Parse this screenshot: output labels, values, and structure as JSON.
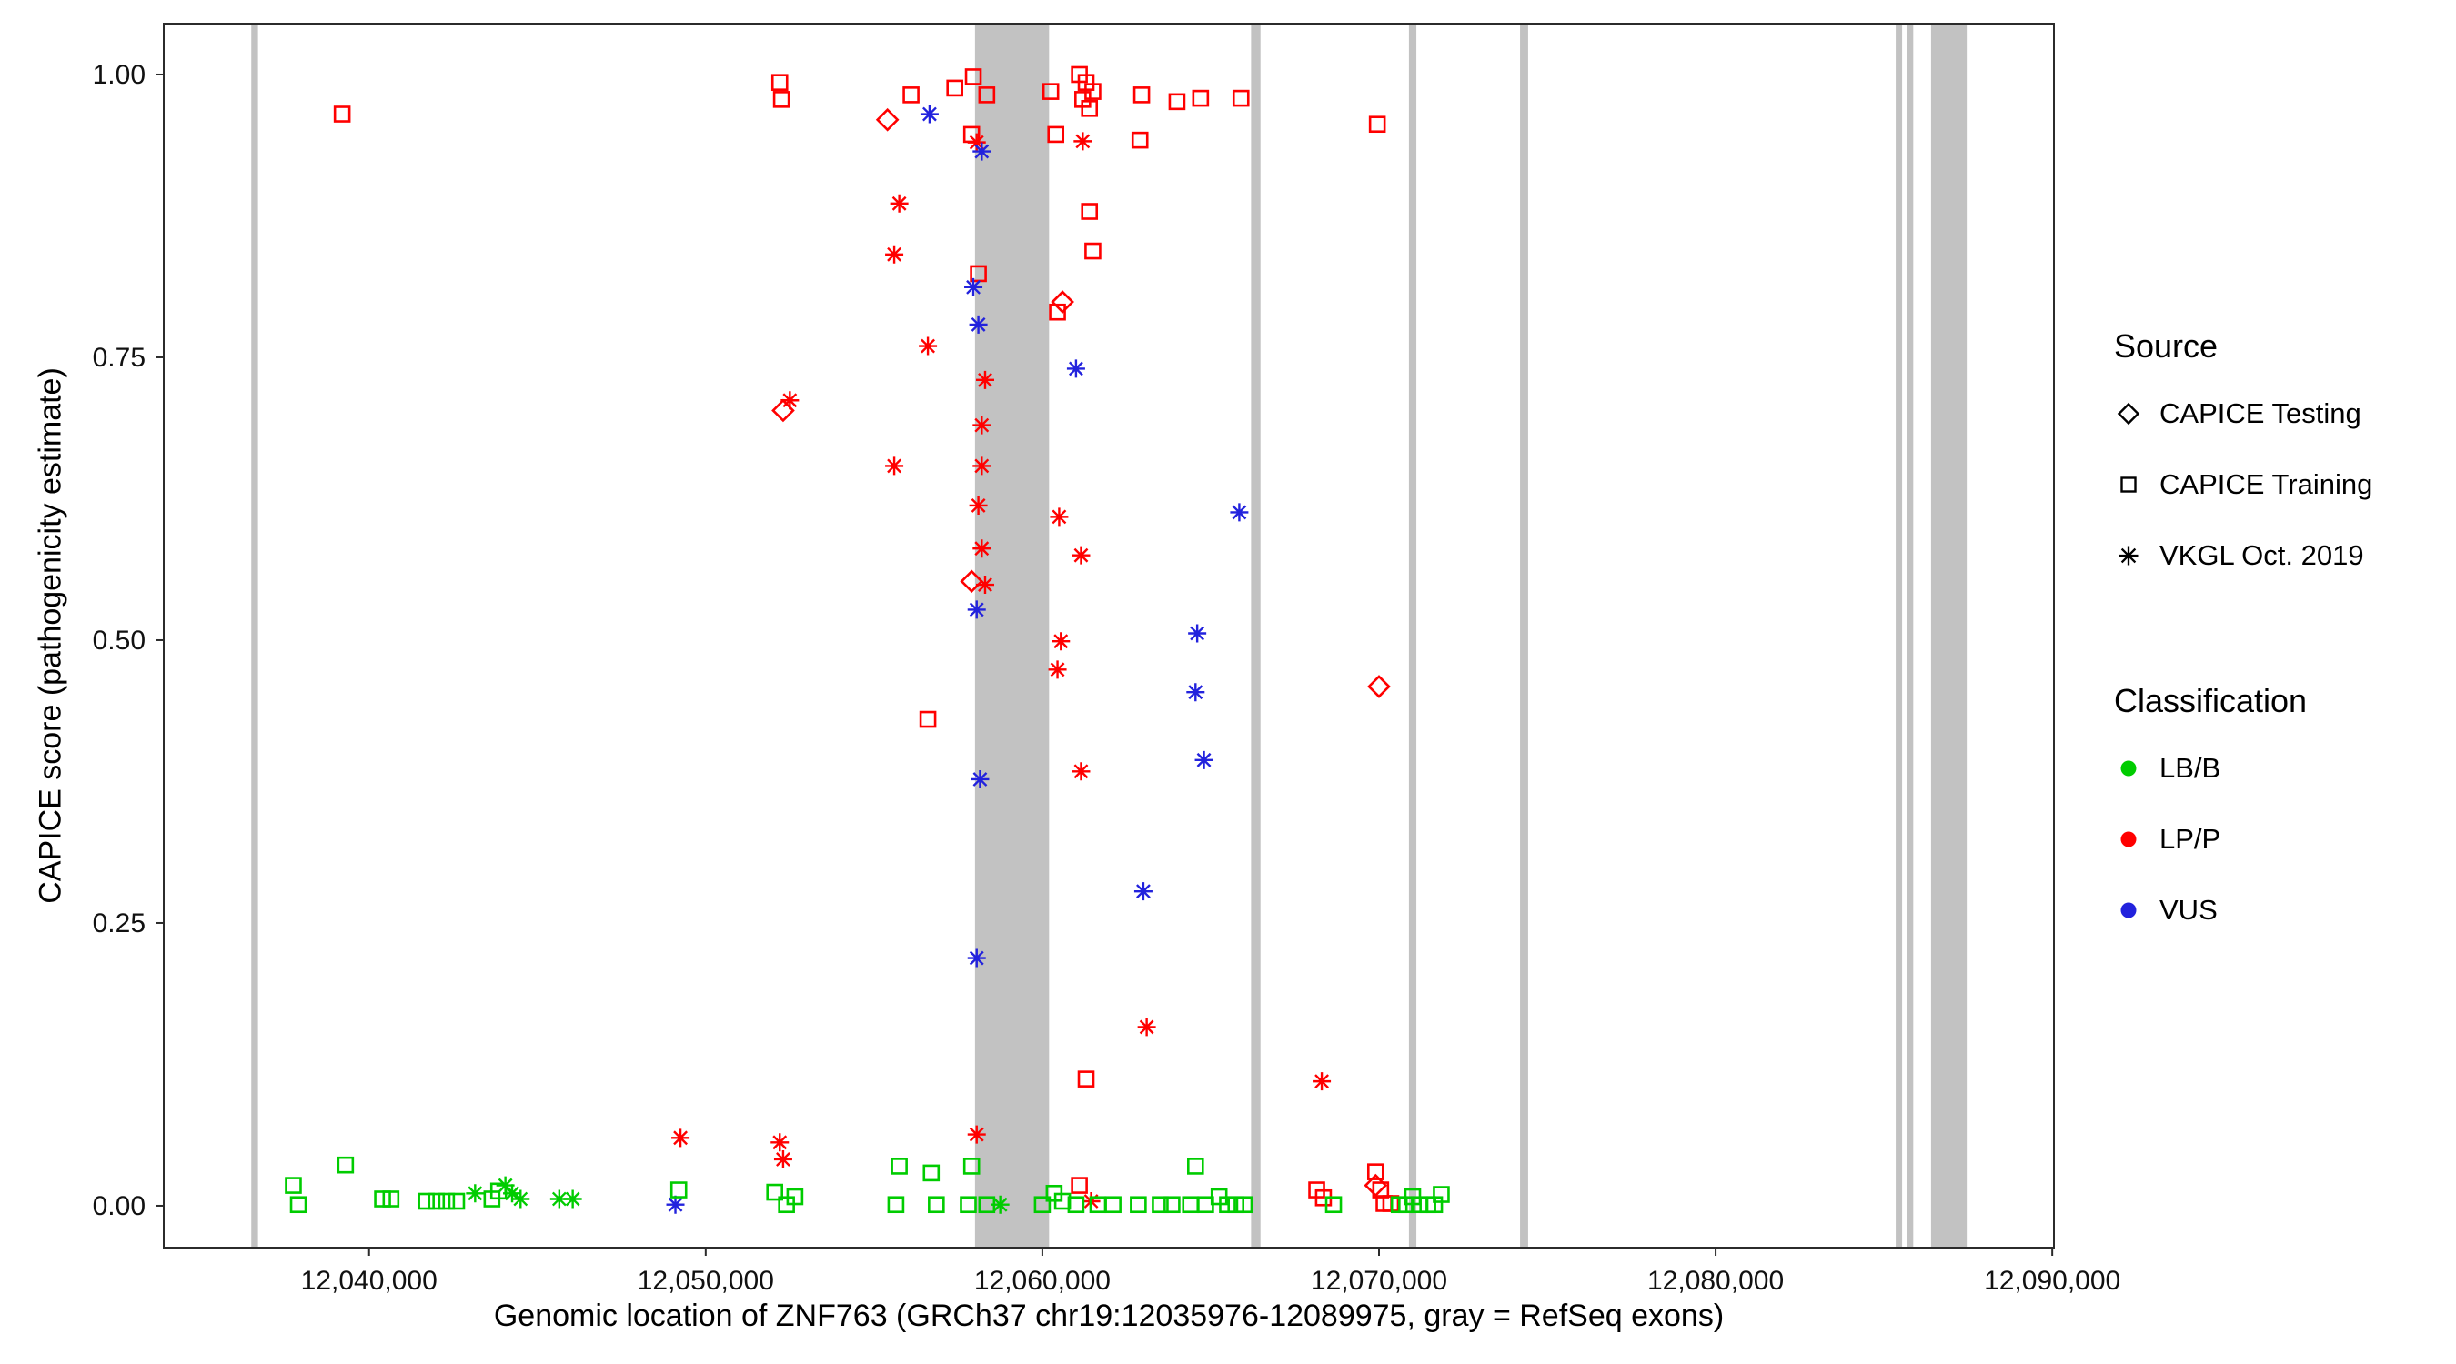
{
  "chart_data": {
    "type": "scatter",
    "title": "",
    "xlabel": "Genomic location of ZNF763 (GRCh37 chr19:12035976-12089975, gray = RefSeq exons)",
    "ylabel": "CAPICE score (pathogenicity estimate)",
    "x_range": [
      12033900,
      12090050
    ],
    "y_range": [
      -0.037,
      1.045
    ],
    "grid": "off",
    "legend_position": "right",
    "x_ticks": [
      {
        "value": 12040000,
        "label": "12,040,000"
      },
      {
        "value": 12050000,
        "label": "12,050,000"
      },
      {
        "value": 12060000,
        "label": "12,060,000"
      },
      {
        "value": 12070000,
        "label": "12,070,000"
      },
      {
        "value": 12080000,
        "label": "12,080,000"
      },
      {
        "value": 12090000,
        "label": "12,090,000"
      }
    ],
    "y_ticks": [
      {
        "value": 0.0,
        "label": "0.00"
      },
      {
        "value": 0.25,
        "label": "0.25"
      },
      {
        "value": 0.5,
        "label": "0.50"
      },
      {
        "value": 0.75,
        "label": "0.75"
      },
      {
        "value": 1.0,
        "label": "1.00"
      }
    ],
    "exon_color": "#c2c2c2",
    "exons": [
      [
        12036500,
        12036700
      ],
      [
        12058000,
        12060200
      ],
      [
        12066200,
        12066480
      ],
      [
        12070890,
        12071110
      ],
      [
        12074190,
        12074430
      ],
      [
        12085350,
        12085540
      ],
      [
        12085680,
        12085870
      ],
      [
        12086400,
        12087460
      ]
    ],
    "colors": {
      "lbb": "#00cc00",
      "lpp": "#ff0000",
      "vus": "#2222dd"
    },
    "legend": {
      "source": {
        "title": "Source",
        "items": [
          {
            "label": "CAPICE Testing",
            "marker": "diamond"
          },
          {
            "label": "CAPICE Training",
            "marker": "square"
          },
          {
            "label": "VKGL Oct. 2019",
            "marker": "asterisk"
          }
        ]
      },
      "classification": {
        "title": "Classification",
        "items": [
          {
            "label": "LB/B",
            "color_key": "lbb"
          },
          {
            "label": "LP/P",
            "color_key": "lpp"
          },
          {
            "label": "VUS",
            "color_key": "vus"
          }
        ]
      }
    },
    "points": [
      [
        12039200,
        0.965,
        "training",
        "lpp"
      ],
      [
        12052200,
        0.993,
        "training",
        "lpp"
      ],
      [
        12052250,
        0.978,
        "training",
        "lpp"
      ],
      [
        12056100,
        0.982,
        "training",
        "lpp"
      ],
      [
        12057400,
        0.988,
        "training",
        "lpp"
      ],
      [
        12057950,
        0.998,
        "training",
        "lpp"
      ],
      [
        12057900,
        0.947,
        "training",
        "lpp"
      ],
      [
        12058350,
        0.982,
        "training",
        "lpp"
      ],
      [
        12058100,
        0.824,
        "training",
        "lpp"
      ],
      [
        12056600,
        0.43,
        "training",
        "lpp"
      ],
      [
        12060250,
        0.985,
        "training",
        "lpp"
      ],
      [
        12060400,
        0.947,
        "training",
        "lpp"
      ],
      [
        12061100,
        1.0,
        "training",
        "lpp"
      ],
      [
        12061300,
        0.993,
        "training",
        "lpp"
      ],
      [
        12061500,
        0.985,
        "training",
        "lpp"
      ],
      [
        12061200,
        0.978,
        "training",
        "lpp"
      ],
      [
        12061400,
        0.97,
        "training",
        "lpp"
      ],
      [
        12061400,
        0.879,
        "training",
        "lpp"
      ],
      [
        12061500,
        0.844,
        "training",
        "lpp"
      ],
      [
        12060450,
        0.79,
        "training",
        "lpp"
      ],
      [
        12062950,
        0.982,
        "training",
        "lpp"
      ],
      [
        12062900,
        0.942,
        "training",
        "lpp"
      ],
      [
        12064000,
        0.976,
        "training",
        "lpp"
      ],
      [
        12064700,
        0.979,
        "training",
        "lpp"
      ],
      [
        12065900,
        0.979,
        "training",
        "lpp"
      ],
      [
        12069950,
        0.956,
        "training",
        "lpp"
      ],
      [
        12061300,
        0.112,
        "training",
        "lpp"
      ],
      [
        12061100,
        0.018,
        "training",
        "lpp"
      ],
      [
        12068150,
        0.014,
        "training",
        "lpp"
      ],
      [
        12068350,
        0.007,
        "training",
        "lpp"
      ],
      [
        12069900,
        0.03,
        "training",
        "lpp"
      ],
      [
        12070050,
        0.014,
        "training",
        "lpp"
      ],
      [
        12070150,
        0.002,
        "training",
        "lpp"
      ],
      [
        12070350,
        0.002,
        "training",
        "lpp"
      ],
      [
        12055400,
        0.96,
        "testing",
        "lpp"
      ],
      [
        12052300,
        0.703,
        "testing",
        "lpp"
      ],
      [
        12057900,
        0.552,
        "testing",
        "lpp"
      ],
      [
        12060600,
        0.799,
        "testing",
        "lpp"
      ],
      [
        12070000,
        0.459,
        "testing",
        "lpp"
      ],
      [
        12069900,
        0.018,
        "testing",
        "lpp"
      ],
      [
        12058050,
        0.94,
        "vkgl",
        "lpp"
      ],
      [
        12061200,
        0.941,
        "vkgl",
        "lpp"
      ],
      [
        12055750,
        0.886,
        "vkgl",
        "lpp"
      ],
      [
        12055600,
        0.841,
        "vkgl",
        "lpp"
      ],
      [
        12056600,
        0.76,
        "vkgl",
        "lpp"
      ],
      [
        12052500,
        0.712,
        "vkgl",
        "lpp"
      ],
      [
        12055600,
        0.654,
        "vkgl",
        "lpp"
      ],
      [
        12058300,
        0.73,
        "vkgl",
        "lpp"
      ],
      [
        12058200,
        0.69,
        "vkgl",
        "lpp"
      ],
      [
        12058200,
        0.654,
        "vkgl",
        "lpp"
      ],
      [
        12058100,
        0.619,
        "vkgl",
        "lpp"
      ],
      [
        12058200,
        0.581,
        "vkgl",
        "lpp"
      ],
      [
        12058300,
        0.549,
        "vkgl",
        "lpp"
      ],
      [
        12060500,
        0.609,
        "vkgl",
        "lpp"
      ],
      [
        12061150,
        0.575,
        "vkgl",
        "lpp"
      ],
      [
        12060550,
        0.499,
        "vkgl",
        "lpp"
      ],
      [
        12060450,
        0.474,
        "vkgl",
        "lpp"
      ],
      [
        12061150,
        0.384,
        "vkgl",
        "lpp"
      ],
      [
        12063100,
        0.158,
        "vkgl",
        "lpp"
      ],
      [
        12068300,
        0.11,
        "vkgl",
        "lpp"
      ],
      [
        12049250,
        0.06,
        "vkgl",
        "lpp"
      ],
      [
        12058050,
        0.063,
        "vkgl",
        "lpp"
      ],
      [
        12052200,
        0.056,
        "vkgl",
        "lpp"
      ],
      [
        12052300,
        0.041,
        "vkgl",
        "lpp"
      ],
      [
        12061450,
        0.004,
        "vkgl",
        "lpp"
      ],
      [
        12056650,
        0.965,
        "vkgl",
        "vus"
      ],
      [
        12058200,
        0.932,
        "vkgl",
        "vus"
      ],
      [
        12057950,
        0.812,
        "vkgl",
        "vus"
      ],
      [
        12058100,
        0.779,
        "vkgl",
        "vus"
      ],
      [
        12061000,
        0.74,
        "vkgl",
        "vus"
      ],
      [
        12058050,
        0.527,
        "vkgl",
        "vus"
      ],
      [
        12058150,
        0.377,
        "vkgl",
        "vus"
      ],
      [
        12058050,
        0.219,
        "vkgl",
        "vus"
      ],
      [
        12065850,
        0.613,
        "vkgl",
        "vus"
      ],
      [
        12064600,
        0.506,
        "vkgl",
        "vus"
      ],
      [
        12064550,
        0.454,
        "vkgl",
        "vus"
      ],
      [
        12064800,
        0.394,
        "vkgl",
        "vus"
      ],
      [
        12063000,
        0.278,
        "vkgl",
        "vus"
      ],
      [
        12049100,
        0.001,
        "vkgl",
        "vus"
      ],
      [
        12037750,
        0.018,
        "training",
        "lbb"
      ],
      [
        12037900,
        0.001,
        "training",
        "lbb"
      ],
      [
        12039300,
        0.036,
        "training",
        "lbb"
      ],
      [
        12040400,
        0.006,
        "training",
        "lbb"
      ],
      [
        12040650,
        0.006,
        "training",
        "lbb"
      ],
      [
        12041700,
        0.004,
        "training",
        "lbb"
      ],
      [
        12042000,
        0.004,
        "training",
        "lbb"
      ],
      [
        12042300,
        0.004,
        "training",
        "lbb"
      ],
      [
        12042600,
        0.004,
        "training",
        "lbb"
      ],
      [
        12043650,
        0.006,
        "training",
        "lbb"
      ],
      [
        12043850,
        0.013,
        "training",
        "lbb"
      ],
      [
        12049200,
        0.014,
        "training",
        "lbb"
      ],
      [
        12052050,
        0.012,
        "training",
        "lbb"
      ],
      [
        12052400,
        0.001,
        "training",
        "lbb"
      ],
      [
        12052650,
        0.008,
        "training",
        "lbb"
      ],
      [
        12055750,
        0.035,
        "training",
        "lbb"
      ],
      [
        12055650,
        0.001,
        "training",
        "lbb"
      ],
      [
        12056700,
        0.029,
        "training",
        "lbb"
      ],
      [
        12056850,
        0.001,
        "training",
        "lbb"
      ],
      [
        12057900,
        0.035,
        "training",
        "lbb"
      ],
      [
        12057800,
        0.001,
        "training",
        "lbb"
      ],
      [
        12058350,
        0.001,
        "training",
        "lbb"
      ],
      [
        12060000,
        0.001,
        "training",
        "lbb"
      ],
      [
        12060350,
        0.011,
        "training",
        "lbb"
      ],
      [
        12060600,
        0.004,
        "training",
        "lbb"
      ],
      [
        12061000,
        0.001,
        "training",
        "lbb"
      ],
      [
        12061650,
        0.001,
        "training",
        "lbb"
      ],
      [
        12062100,
        0.001,
        "training",
        "lbb"
      ],
      [
        12062850,
        0.001,
        "training",
        "lbb"
      ],
      [
        12063500,
        0.001,
        "training",
        "lbb"
      ],
      [
        12063850,
        0.001,
        "training",
        "lbb"
      ],
      [
        12064550,
        0.035,
        "training",
        "lbb"
      ],
      [
        12064400,
        0.001,
        "training",
        "lbb"
      ],
      [
        12064850,
        0.001,
        "training",
        "lbb"
      ],
      [
        12065250,
        0.008,
        "training",
        "lbb"
      ],
      [
        12065500,
        0.001,
        "training",
        "lbb"
      ],
      [
        12065750,
        0.001,
        "training",
        "lbb"
      ],
      [
        12066000,
        0.001,
        "training",
        "lbb"
      ],
      [
        12068650,
        0.001,
        "training",
        "lbb"
      ],
      [
        12070600,
        0.001,
        "training",
        "lbb"
      ],
      [
        12070820,
        0.001,
        "training",
        "lbb"
      ],
      [
        12071000,
        0.008,
        "training",
        "lbb"
      ],
      [
        12071200,
        0.001,
        "training",
        "lbb"
      ],
      [
        12071450,
        0.001,
        "training",
        "lbb"
      ],
      [
        12071650,
        0.001,
        "training",
        "lbb"
      ],
      [
        12071850,
        0.01,
        "training",
        "lbb"
      ],
      [
        12043150,
        0.011,
        "vkgl",
        "lbb"
      ],
      [
        12044050,
        0.018,
        "vkgl",
        "lbb"
      ],
      [
        12044250,
        0.011,
        "vkgl",
        "lbb"
      ],
      [
        12044500,
        0.006,
        "vkgl",
        "lbb"
      ],
      [
        12045650,
        0.006,
        "vkgl",
        "lbb"
      ],
      [
        12046050,
        0.006,
        "vkgl",
        "lbb"
      ],
      [
        12058750,
        0.001,
        "vkgl",
        "lbb"
      ]
    ]
  }
}
